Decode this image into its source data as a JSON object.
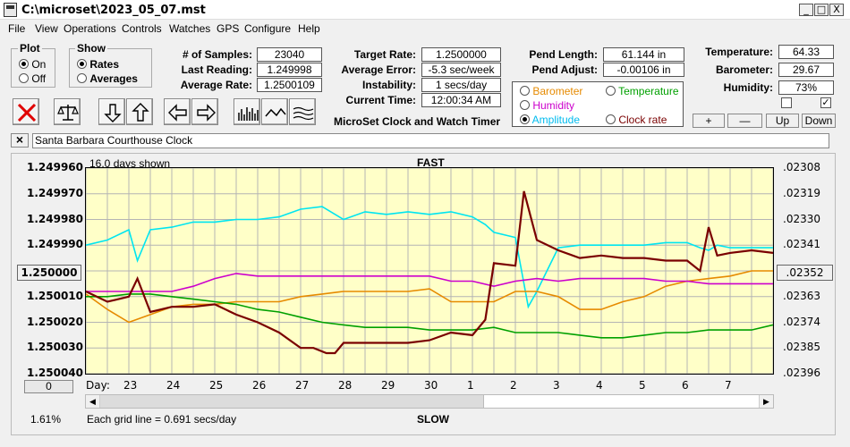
{
  "window": {
    "title": "C:\\microset\\2023_05_07.mst",
    "btn_min": "_",
    "btn_max": "□",
    "btn_close": "X"
  },
  "menu": [
    "File",
    "View",
    "Operations",
    "Controls",
    "Watches",
    "GPS",
    "Configure",
    "Help"
  ],
  "plot_group": {
    "title": "Plot",
    "on": "On",
    "off": "Off",
    "selected": "On"
  },
  "show_group": {
    "title": "Show",
    "rates": "Rates",
    "averages": "Averages",
    "selected": "Rates"
  },
  "stats": {
    "samples_label": "# of Samples:",
    "samples": "23040",
    "last_label": "Last Reading:",
    "last": "1.249998",
    "avg_label": "Average Rate:",
    "avg": "1.2500109",
    "target_label": "Target Rate:",
    "target": "1.2500000",
    "avgerr_label": "Average Error:",
    "avgerr": "-5.3 sec/week",
    "instab_label": "Instability:",
    "instab": "1 secs/day",
    "time_label": "Current Time:",
    "time": "12:00:34 AM",
    "pendlen_label": "Pend Length:",
    "pendlen": "61.144 in",
    "pendadj_label": "Pend Adjust:",
    "pendadj": "-0.00106 in",
    "temp_label": "Temperature:",
    "temp": "64.33",
    "baro_label": "Barometer:",
    "baro": "29.67",
    "hum_label": "Humidity:",
    "hum": "73%"
  },
  "app_caption": "MicroSet Clock and Watch Timer",
  "overlay": {
    "barometer": "Barometer",
    "temperature": "Temperature",
    "humidity": "Humidity",
    "amplitude": "Amplitude",
    "clockrate": "Clock rate",
    "selected": "Amplitude",
    "colors": {
      "barometer": "#e68a00",
      "temperature": "#00a000",
      "humidity": "#cc00cc",
      "amplitude": "#00bbee",
      "clockrate": "#7a0000"
    }
  },
  "scale_buttons": {
    "plus": "+",
    "minus": "—",
    "up": "Up",
    "down": "Down"
  },
  "watch": {
    "clear": "×",
    "name": "Santa Barbara Courthouse Clock"
  },
  "chart_header": {
    "days_shown": "16.0 days shown",
    "fast": "FAST",
    "slow": "SLOW",
    "grid_note": "Each grid line = 0.691 secs/day",
    "zoom": "1.61%",
    "day_label": "Day:",
    "left_btn": "1.250000",
    "right_btn": ".02352",
    "bottom_btn": "0"
  },
  "chart_data": {
    "type": "line",
    "y_left_ticks": [
      "1.249960",
      "1.249970",
      "1.249980",
      "1.249990",
      "1.250000",
      "1.250010",
      "1.250020",
      "1.250030",
      "1.250040"
    ],
    "y_right_ticks": [
      ".02308",
      ".02319",
      ".02330",
      ".02341",
      ".02352",
      ".02363",
      ".02374",
      ".02385",
      ".02396"
    ],
    "x_ticks": [
      "23",
      "24",
      "25",
      "26",
      "27",
      "28",
      "29",
      "30",
      "1",
      "2",
      "3",
      "4",
      "5",
      "6",
      "7"
    ],
    "xlim": [
      22.0,
      38.0
    ],
    "ylim": [
      1.24996,
      1.25004
    ],
    "grid": true,
    "series": [
      {
        "color": "#00e5f0",
        "x": [
          22,
          22.5,
          23,
          23.2,
          23.5,
          24,
          24.5,
          25,
          25.5,
          26,
          26.5,
          27,
          27.5,
          28,
          28.5,
          29,
          29.5,
          30,
          30.5,
          31,
          31.3,
          31.5,
          32,
          32.3,
          32.5,
          33,
          33.5,
          34,
          34.5,
          35,
          35.5,
          36,
          36.3,
          36.5,
          36.7,
          37,
          37.5,
          38
        ],
        "y": [
          1.24999,
          1.249988,
          1.249984,
          1.249996,
          1.249984,
          1.249983,
          1.249981,
          1.249981,
          1.24998,
          1.24998,
          1.249979,
          1.249976,
          1.249975,
          1.24998,
          1.249977,
          1.249978,
          1.249977,
          1.249978,
          1.249977,
          1.249979,
          1.249982,
          1.249985,
          1.249987,
          1.250014,
          1.250008,
          1.249991,
          1.24999,
          1.24999,
          1.24999,
          1.24999,
          1.249989,
          1.249989,
          1.249991,
          1.249992,
          1.24999,
          1.249991,
          1.249991,
          1.249991
        ]
      },
      {
        "color": "#e68a00",
        "x": [
          22,
          22.5,
          23,
          23.5,
          24,
          24.5,
          25,
          25.5,
          26,
          26.5,
          27,
          27.5,
          28,
          28.5,
          29,
          29.5,
          30,
          30.5,
          31,
          31.5,
          32,
          32.5,
          33,
          33.5,
          34,
          34.5,
          35,
          35.5,
          36,
          36.5,
          37,
          37.5,
          38
        ],
        "y": [
          1.250009,
          1.250015,
          1.25002,
          1.250017,
          1.250014,
          1.250013,
          1.250013,
          1.250012,
          1.250012,
          1.250012,
          1.25001,
          1.250009,
          1.250008,
          1.250008,
          1.250008,
          1.250008,
          1.250007,
          1.250012,
          1.250012,
          1.250012,
          1.250008,
          1.250008,
          1.25001,
          1.250015,
          1.250015,
          1.250012,
          1.25001,
          1.250006,
          1.250004,
          1.250003,
          1.250002,
          1.25,
          1.25
        ]
      },
      {
        "color": "#cc00cc",
        "x": [
          22,
          22.5,
          23,
          23.5,
          24,
          24.5,
          25,
          25.5,
          26,
          26.5,
          27,
          27.5,
          28,
          28.5,
          29,
          29.5,
          30,
          30.5,
          31,
          31.5,
          32,
          32.5,
          33,
          33.5,
          34,
          34.5,
          35,
          35.5,
          36,
          36.5,
          37,
          37.5,
          38
        ],
        "y": [
          1.250008,
          1.250008,
          1.250008,
          1.250008,
          1.250008,
          1.250006,
          1.250003,
          1.250001,
          1.250002,
          1.250002,
          1.250002,
          1.250002,
          1.250002,
          1.250002,
          1.250002,
          1.250002,
          1.250002,
          1.250004,
          1.250004,
          1.250006,
          1.250004,
          1.250003,
          1.250004,
          1.250003,
          1.250003,
          1.250003,
          1.250003,
          1.250004,
          1.250004,
          1.250005,
          1.250005,
          1.250005,
          1.250005
        ]
      },
      {
        "color": "#00a000",
        "x": [
          22,
          22.5,
          23,
          23.5,
          24,
          24.5,
          25,
          25.5,
          26,
          26.5,
          27,
          27.5,
          28,
          28.5,
          29,
          29.5,
          30,
          30.5,
          31,
          31.5,
          32,
          32.5,
          33,
          33.5,
          34,
          34.5,
          35,
          35.5,
          36,
          36.5,
          37,
          37.5,
          38
        ],
        "y": [
          1.25001,
          1.25001,
          1.250009,
          1.250009,
          1.25001,
          1.250011,
          1.250012,
          1.250013,
          1.250015,
          1.250016,
          1.250018,
          1.25002,
          1.250021,
          1.250022,
          1.250022,
          1.250022,
          1.250023,
          1.250023,
          1.250023,
          1.250022,
          1.250024,
          1.250024,
          1.250024,
          1.250025,
          1.250026,
          1.250026,
          1.250025,
          1.250024,
          1.250024,
          1.250023,
          1.250023,
          1.250023,
          1.250021
        ]
      },
      {
        "color": "#7a0000",
        "x": [
          22,
          22.5,
          23,
          23.2,
          23.5,
          24,
          24.5,
          25,
          25.5,
          26,
          26.5,
          27,
          27.3,
          27.6,
          27.8,
          28,
          28.5,
          29,
          29.5,
          30,
          30.5,
          31,
          31.3,
          31.5,
          32,
          32.2,
          32.5,
          33,
          33.5,
          34,
          34.5,
          35,
          35.5,
          36,
          36.3,
          36.5,
          36.7,
          37,
          37.5,
          38
        ],
        "y": [
          1.250008,
          1.250012,
          1.25001,
          1.250003,
          1.250016,
          1.250014,
          1.250014,
          1.250013,
          1.250017,
          1.25002,
          1.250024,
          1.25003,
          1.25003,
          1.250032,
          1.250032,
          1.250028,
          1.250028,
          1.250028,
          1.250028,
          1.250027,
          1.250024,
          1.250025,
          1.250019,
          1.249997,
          1.249998,
          1.249969,
          1.249988,
          1.249992,
          1.249995,
          1.249994,
          1.249995,
          1.249995,
          1.249996,
          1.249996,
          1.25,
          1.249983,
          1.249994,
          1.249993,
          1.249992,
          1.249993
        ]
      }
    ]
  }
}
